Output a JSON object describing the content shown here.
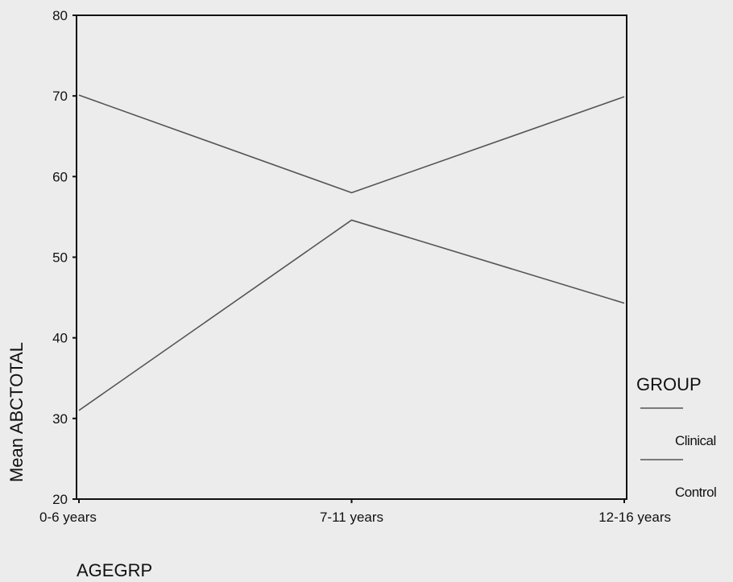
{
  "chart_data": {
    "type": "line",
    "categories": [
      "0-6 years",
      "7-11 years",
      "12-16 years"
    ],
    "series": [
      {
        "name": "Clinical",
        "values": [
          70.1,
          58.0,
          69.9
        ],
        "color": "#555555"
      },
      {
        "name": "Control",
        "values": [
          31.0,
          54.6,
          44.3
        ],
        "color": "#555555"
      }
    ],
    "title": "",
    "xlabel": "AGEGRP",
    "ylabel": "Mean ABCTOTAL",
    "ylim": [
      20,
      80
    ],
    "yticks": [
      20,
      30,
      40,
      50,
      60,
      70,
      80
    ],
    "grid": false,
    "legend": {
      "title": "GROUP",
      "position": "right"
    }
  }
}
